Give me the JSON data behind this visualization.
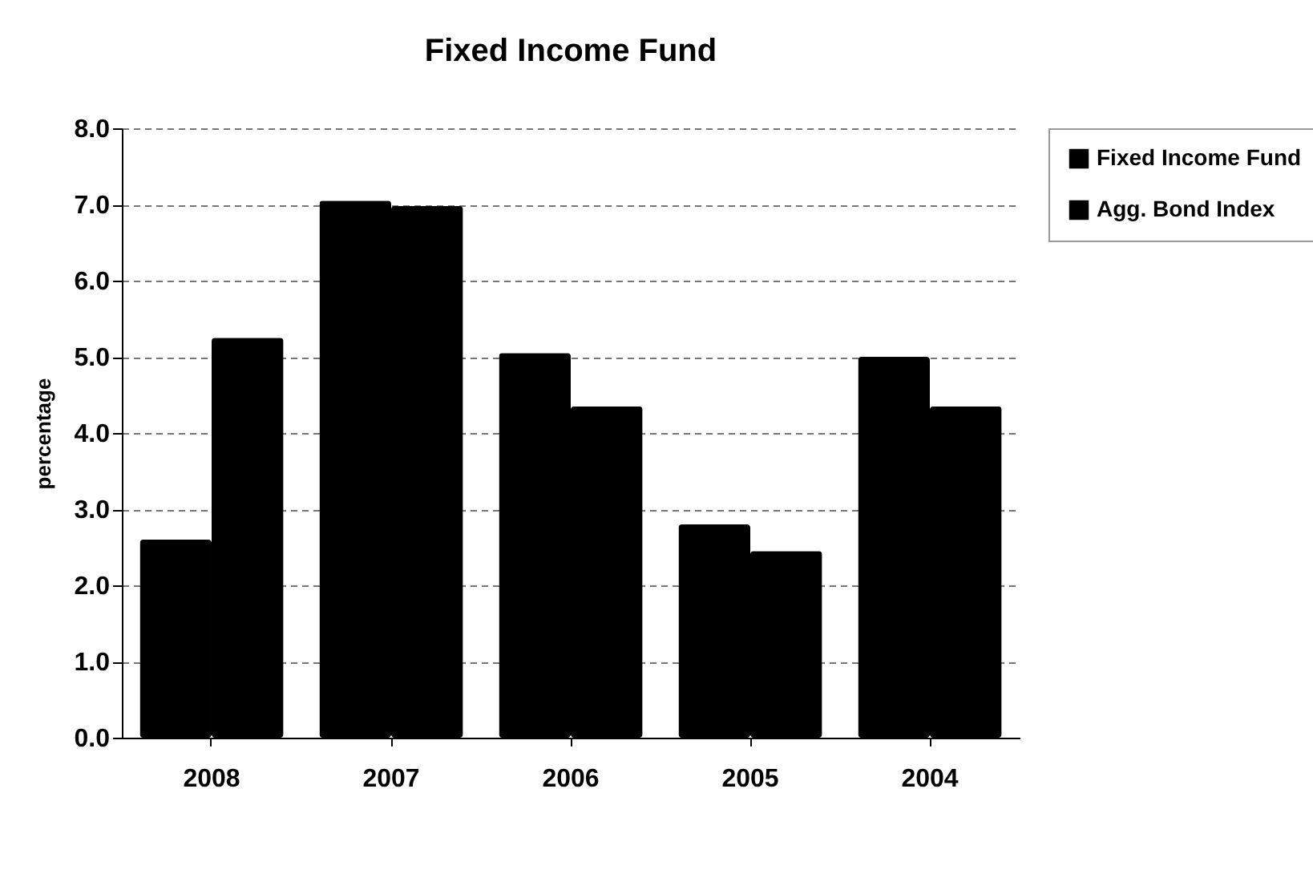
{
  "chart_data": {
    "type": "bar",
    "title": "Fixed Income Fund",
    "ylabel": "percentage",
    "categories": [
      "2008",
      "2007",
      "2006",
      "2005",
      "2004"
    ],
    "series": [
      {
        "name": "Fixed Income Fund",
        "color": "#000000",
        "values": [
          2.6,
          7.05,
          5.05,
          2.8,
          5.0
        ]
      },
      {
        "name": "Agg. Bond Index",
        "color": "#000000",
        "values": [
          5.25,
          6.98,
          4.35,
          2.45,
          4.35
        ]
      }
    ],
    "ylim": [
      0,
      8
    ],
    "yticks": [
      {
        "value": 0,
        "label": "0.0"
      },
      {
        "value": 1,
        "label": "1.0"
      },
      {
        "value": 2,
        "label": "2.0"
      },
      {
        "value": 3,
        "label": "3.0"
      },
      {
        "value": 4,
        "label": "4.0"
      },
      {
        "value": 5,
        "label": "5.0"
      },
      {
        "value": 6,
        "label": "6.0"
      },
      {
        "value": 7,
        "label": "7.0"
      },
      {
        "value": 8,
        "label": "8.0"
      }
    ],
    "grid": "y",
    "legend": "right"
  }
}
